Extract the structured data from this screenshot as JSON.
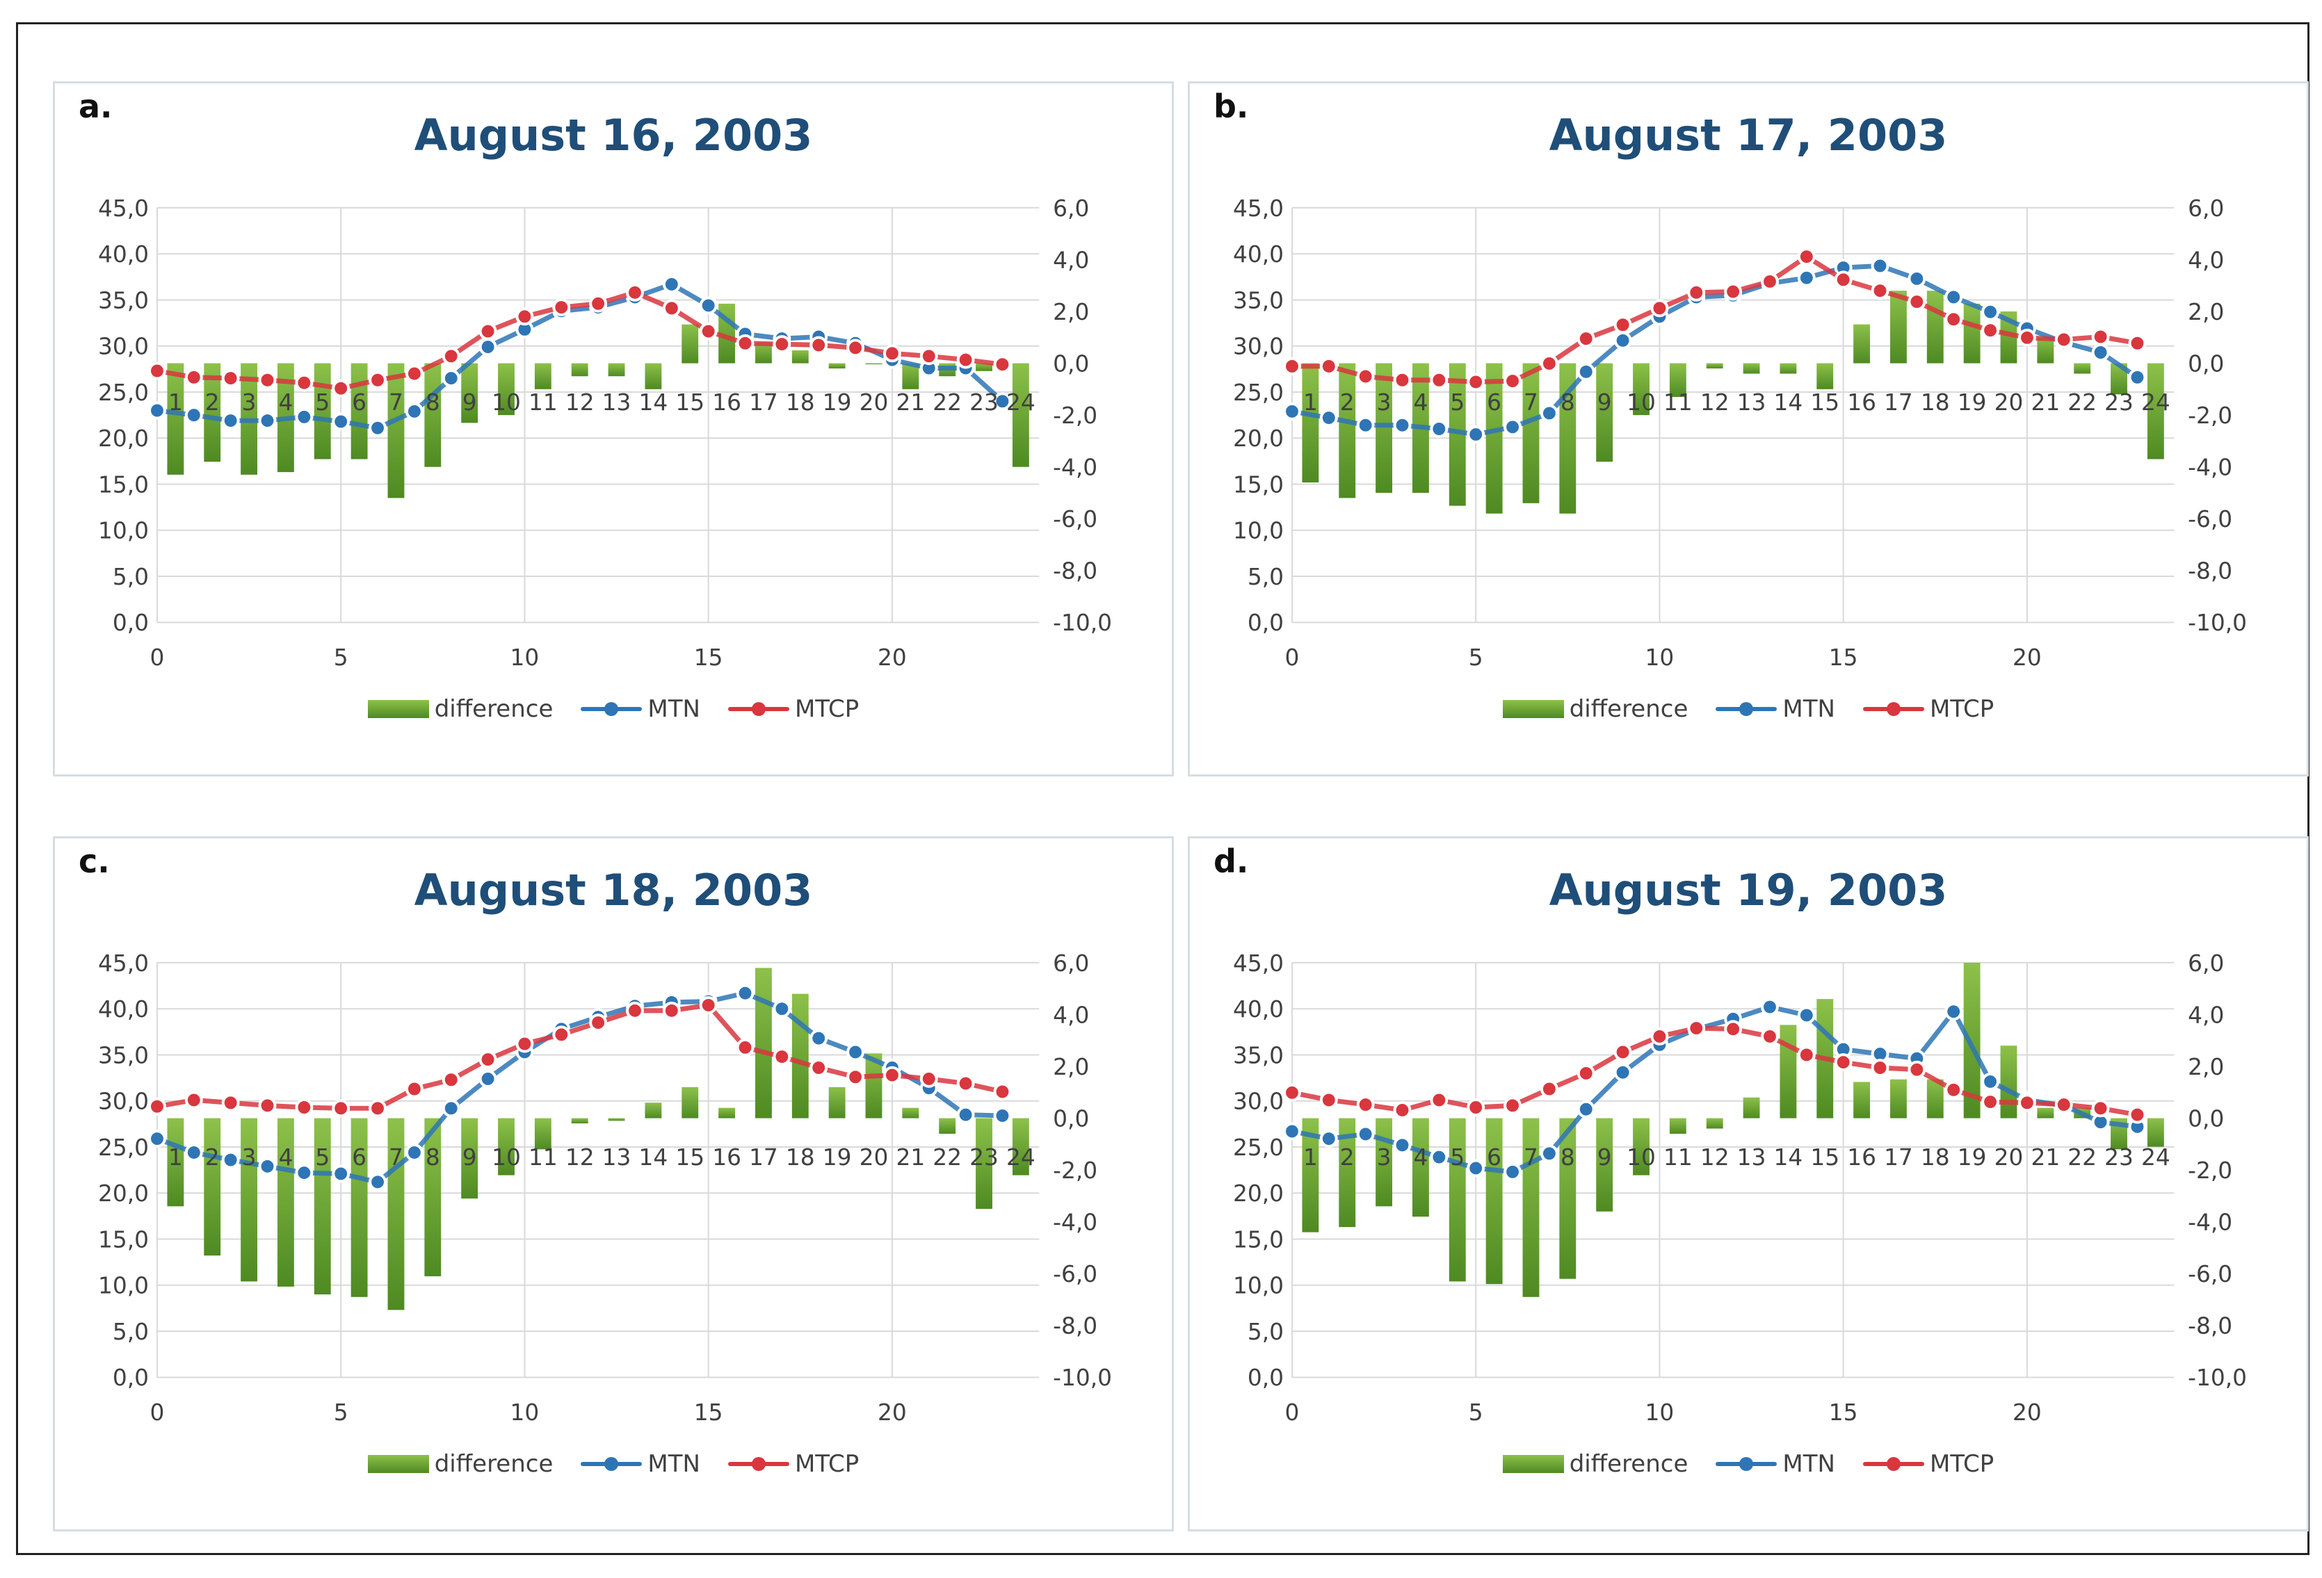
{
  "colors": {
    "difference": "#5fa52c",
    "MTN": "#2e75b6",
    "MTCP": "#d9363e",
    "title": "#1f4e79",
    "grid": "#d9d9d9"
  },
  "chart_data": [
    {
      "type": "bar+line",
      "letter": "a.",
      "title": "August 16, 2003",
      "x_ticks": [
        "0",
        "5",
        "10",
        "15",
        "20"
      ],
      "xlim": [
        0,
        24
      ],
      "categories": [
        "1",
        "2",
        "3",
        "4",
        "5",
        "6",
        "7",
        "8",
        "9",
        "10",
        "11",
        "12",
        "13",
        "14",
        "15",
        "16",
        "17",
        "18",
        "19",
        "20",
        "21",
        "22",
        "23",
        "24"
      ],
      "left_axis": {
        "ylim": [
          0,
          45
        ],
        "ticks": [
          "45,0",
          "40,0",
          "35,0",
          "30,0",
          "25,0",
          "20,0",
          "15,0",
          "10,0",
          "5,0",
          "0,0"
        ]
      },
      "right_axis": {
        "ylim": [
          -10,
          6
        ],
        "ticks": [
          "6,0",
          "4,0",
          "2,0",
          "0,0",
          "-2,0",
          "-4,0",
          "-6,0",
          "-8,0",
          "-10,0"
        ]
      },
      "grid": true,
      "legend_position": "bottom",
      "series": [
        {
          "name": "difference",
          "type": "bar",
          "axis": "right",
          "values": [
            -4.3,
            -3.8,
            -4.3,
            -4.2,
            -3.7,
            -3.7,
            -5.2,
            -4.0,
            -2.3,
            -2.0,
            -1.0,
            -0.5,
            -0.5,
            -1.0,
            1.5,
            2.3,
            0.8,
            0.5,
            -0.2,
            0.0,
            -1.0,
            -0.5,
            -0.3,
            -4.0
          ]
        },
        {
          "name": "MTN",
          "type": "line",
          "axis": "left",
          "x": [
            0,
            1,
            2,
            3,
            4,
            5,
            6,
            7,
            8,
            9,
            10,
            11,
            12,
            13,
            14,
            15,
            16,
            17,
            18,
            19,
            20,
            21,
            22,
            23
          ],
          "values": [
            23.0,
            22.5,
            21.9,
            21.9,
            22.3,
            21.8,
            21.1,
            22.9,
            26.5,
            29.9,
            31.8,
            33.8,
            34.2,
            35.3,
            36.7,
            34.4,
            31.3,
            30.8,
            31.0,
            30.3,
            28.5,
            27.6,
            27.6,
            24.0
          ]
        },
        {
          "name": "MTCP",
          "type": "line",
          "axis": "left",
          "x": [
            0,
            1,
            2,
            3,
            4,
            5,
            6,
            7,
            8,
            9,
            10,
            11,
            12,
            13,
            14,
            15,
            16,
            17,
            18,
            19,
            20,
            21,
            22,
            23
          ],
          "values": [
            27.3,
            26.6,
            26.5,
            26.3,
            26.0,
            25.4,
            26.3,
            27.0,
            28.9,
            31.6,
            33.2,
            34.2,
            34.6,
            35.8,
            34.1,
            31.6,
            30.3,
            30.2,
            30.1,
            29.8,
            29.2,
            28.9,
            28.5,
            28.0
          ]
        }
      ]
    },
    {
      "type": "bar+line",
      "letter": "b.",
      "title": "August 17, 2003",
      "x_ticks": [
        "0",
        "5",
        "10",
        "15",
        "20"
      ],
      "xlim": [
        0,
        24
      ],
      "categories": [
        "1",
        "2",
        "3",
        "4",
        "5",
        "6",
        "7",
        "8",
        "9",
        "10",
        "11",
        "12",
        "13",
        "14",
        "15",
        "16",
        "17",
        "18",
        "19",
        "20",
        "21",
        "22",
        "23",
        "24"
      ],
      "left_axis": {
        "ylim": [
          0,
          45
        ],
        "ticks": [
          "45,0",
          "40,0",
          "35,0",
          "30,0",
          "25,0",
          "20,0",
          "15,0",
          "10,0",
          "5,0",
          "0,0"
        ]
      },
      "right_axis": {
        "ylim": [
          -10,
          6
        ],
        "ticks": [
          "6,0",
          "4,0",
          "2,0",
          "0,0",
          "-2,0",
          "-4,0",
          "-6,0",
          "-8,0",
          "-10,0"
        ]
      },
      "grid": true,
      "legend_position": "bottom",
      "series": [
        {
          "name": "difference",
          "type": "bar",
          "axis": "right",
          "values": [
            -4.6,
            -5.2,
            -5.0,
            -5.0,
            -5.5,
            -5.8,
            -5.4,
            -5.8,
            -3.8,
            -2.0,
            -1.3,
            -0.2,
            -0.4,
            -0.4,
            -1.0,
            1.5,
            2.8,
            2.8,
            2.3,
            2.0,
            1.0,
            -0.4,
            -1.2,
            -3.7
          ]
        },
        {
          "name": "MTN",
          "type": "line",
          "axis": "left",
          "x": [
            0,
            1,
            2,
            3,
            4,
            5,
            6,
            7,
            8,
            9,
            10,
            11,
            12,
            13,
            14,
            15,
            16,
            17,
            18,
            19,
            20,
            21,
            22,
            23
          ],
          "values": [
            22.9,
            22.2,
            21.4,
            21.4,
            21.0,
            20.4,
            21.2,
            22.7,
            27.2,
            30.6,
            33.2,
            35.3,
            35.5,
            36.8,
            37.4,
            38.5,
            38.7,
            37.3,
            35.3,
            33.7,
            31.9,
            30.4,
            29.3,
            26.6
          ]
        },
        {
          "name": "MTCP",
          "type": "line",
          "axis": "left",
          "x": [
            0,
            1,
            2,
            3,
            4,
            5,
            6,
            7,
            8,
            9,
            10,
            11,
            12,
            13,
            14,
            15,
            16,
            17,
            18,
            19,
            20,
            21,
            22,
            23
          ],
          "values": [
            27.8,
            27.8,
            26.7,
            26.3,
            26.3,
            26.1,
            26.2,
            28.1,
            30.8,
            32.3,
            34.1,
            35.8,
            35.9,
            37.0,
            39.7,
            37.2,
            36.0,
            34.8,
            32.9,
            31.7,
            30.9,
            30.7,
            31.0,
            30.3
          ]
        }
      ]
    },
    {
      "type": "bar+line",
      "letter": "c.",
      "title": "August 18, 2003",
      "x_ticks": [
        "0",
        "5",
        "10",
        "15",
        "20"
      ],
      "xlim": [
        0,
        24
      ],
      "categories": [
        "1",
        "2",
        "3",
        "4",
        "5",
        "6",
        "7",
        "8",
        "9",
        "10",
        "11",
        "12",
        "13",
        "14",
        "15",
        "16",
        "17",
        "18",
        "19",
        "20",
        "21",
        "22",
        "23",
        "24"
      ],
      "left_axis": {
        "ylim": [
          0,
          45
        ],
        "ticks": [
          "45,0",
          "40,0",
          "35,0",
          "30,0",
          "25,0",
          "20,0",
          "15,0",
          "10,0",
          "5,0",
          "0,0"
        ]
      },
      "right_axis": {
        "ylim": [
          -10,
          6
        ],
        "ticks": [
          "6,0",
          "4,0",
          "2,0",
          "0,0",
          "-2,0",
          "-4,0",
          "-6,0",
          "-8,0",
          "-10,0"
        ]
      },
      "grid": true,
      "legend_position": "bottom",
      "series": [
        {
          "name": "difference",
          "type": "bar",
          "axis": "right",
          "values": [
            -3.4,
            -5.3,
            -6.3,
            -6.5,
            -6.8,
            -6.9,
            -7.4,
            -6.1,
            -3.1,
            -2.2,
            -1.2,
            -0.2,
            -0.1,
            0.6,
            1.2,
            0.4,
            5.8,
            4.8,
            1.2,
            2.5,
            0.4,
            -0.6,
            -3.5,
            -2.2
          ]
        },
        {
          "name": "MTN",
          "type": "line",
          "axis": "left",
          "x": [
            0,
            1,
            2,
            3,
            4,
            5,
            6,
            7,
            8,
            9,
            10,
            11,
            12,
            13,
            14,
            15,
            16,
            17,
            18,
            19,
            20,
            21,
            22,
            23
          ],
          "values": [
            25.9,
            24.4,
            23.6,
            22.9,
            22.2,
            22.1,
            21.2,
            24.4,
            29.2,
            32.4,
            35.3,
            37.8,
            39.1,
            40.3,
            40.7,
            40.8,
            41.7,
            40.0,
            36.8,
            35.3,
            33.6,
            31.4,
            28.5,
            28.4
          ]
        },
        {
          "name": "MTCP",
          "type": "line",
          "axis": "left",
          "x": [
            0,
            1,
            2,
            3,
            4,
            5,
            6,
            7,
            8,
            9,
            10,
            11,
            12,
            13,
            14,
            15,
            16,
            17,
            18,
            19,
            20,
            21,
            22,
            23
          ],
          "values": [
            29.4,
            30.1,
            29.8,
            29.5,
            29.3,
            29.2,
            29.2,
            31.3,
            32.3,
            34.5,
            36.2,
            37.2,
            38.5,
            39.8,
            39.8,
            40.4,
            35.8,
            34.8,
            33.6,
            32.6,
            32.8,
            32.4,
            31.9,
            31.0
          ]
        }
      ]
    },
    {
      "type": "bar+line",
      "letter": "d.",
      "title": "August 19, 2003",
      "x_ticks": [
        "0",
        "5",
        "10",
        "15",
        "20"
      ],
      "xlim": [
        0,
        24
      ],
      "categories": [
        "1",
        "2",
        "3",
        "4",
        "5",
        "6",
        "7",
        "8",
        "9",
        "10",
        "11",
        "12",
        "13",
        "14",
        "15",
        "16",
        "17",
        "18",
        "19",
        "20",
        "21",
        "22",
        "23",
        "24"
      ],
      "left_axis": {
        "ylim": [
          0,
          45
        ],
        "ticks": [
          "45,0",
          "40,0",
          "35,0",
          "30,0",
          "25,0",
          "20,0",
          "15,0",
          "10,0",
          "5,0",
          "0,0"
        ]
      },
      "right_axis": {
        "ylim": [
          -10,
          6
        ],
        "ticks": [
          "6,0",
          "4,0",
          "2,0",
          "0,0",
          "-2,0",
          "-4,0",
          "-6,0",
          "-8,0",
          "-10,0"
        ]
      },
      "grid": true,
      "legend_position": "bottom",
      "series": [
        {
          "name": "difference",
          "type": "bar",
          "axis": "right",
          "values": [
            -4.4,
            -4.2,
            -3.4,
            -3.8,
            -6.3,
            -6.4,
            -6.9,
            -6.2,
            -3.6,
            -2.2,
            -0.6,
            -0.4,
            0.8,
            3.6,
            4.6,
            1.4,
            1.5,
            1.5,
            6.0,
            2.8,
            0.4,
            0.4,
            -1.2,
            -1.1
          ]
        },
        {
          "name": "MTN",
          "type": "line",
          "axis": "left",
          "x": [
            0,
            1,
            2,
            3,
            4,
            5,
            6,
            7,
            8,
            9,
            10,
            11,
            12,
            13,
            14,
            15,
            16,
            17,
            18,
            19,
            20,
            21,
            22,
            23
          ],
          "values": [
            26.7,
            25.9,
            26.4,
            25.2,
            23.9,
            22.7,
            22.3,
            24.3,
            29.1,
            33.1,
            36.1,
            37.8,
            38.9,
            40.2,
            39.3,
            35.6,
            35.1,
            34.6,
            39.7,
            32.1,
            30.1,
            29.5,
            27.7,
            27.2
          ]
        },
        {
          "name": "MTCP",
          "type": "line",
          "axis": "left",
          "x": [
            0,
            1,
            2,
            3,
            4,
            5,
            6,
            7,
            8,
            9,
            10,
            11,
            12,
            13,
            14,
            15,
            16,
            17,
            18,
            19,
            20,
            21,
            22,
            23
          ],
          "values": [
            30.9,
            30.1,
            29.6,
            29.0,
            30.1,
            29.3,
            29.5,
            31.3,
            33.0,
            35.3,
            37.0,
            37.9,
            37.8,
            37.0,
            35.0,
            34.2,
            33.6,
            33.4,
            31.2,
            29.9,
            29.8,
            29.6,
            29.2,
            28.5
          ]
        }
      ]
    }
  ]
}
